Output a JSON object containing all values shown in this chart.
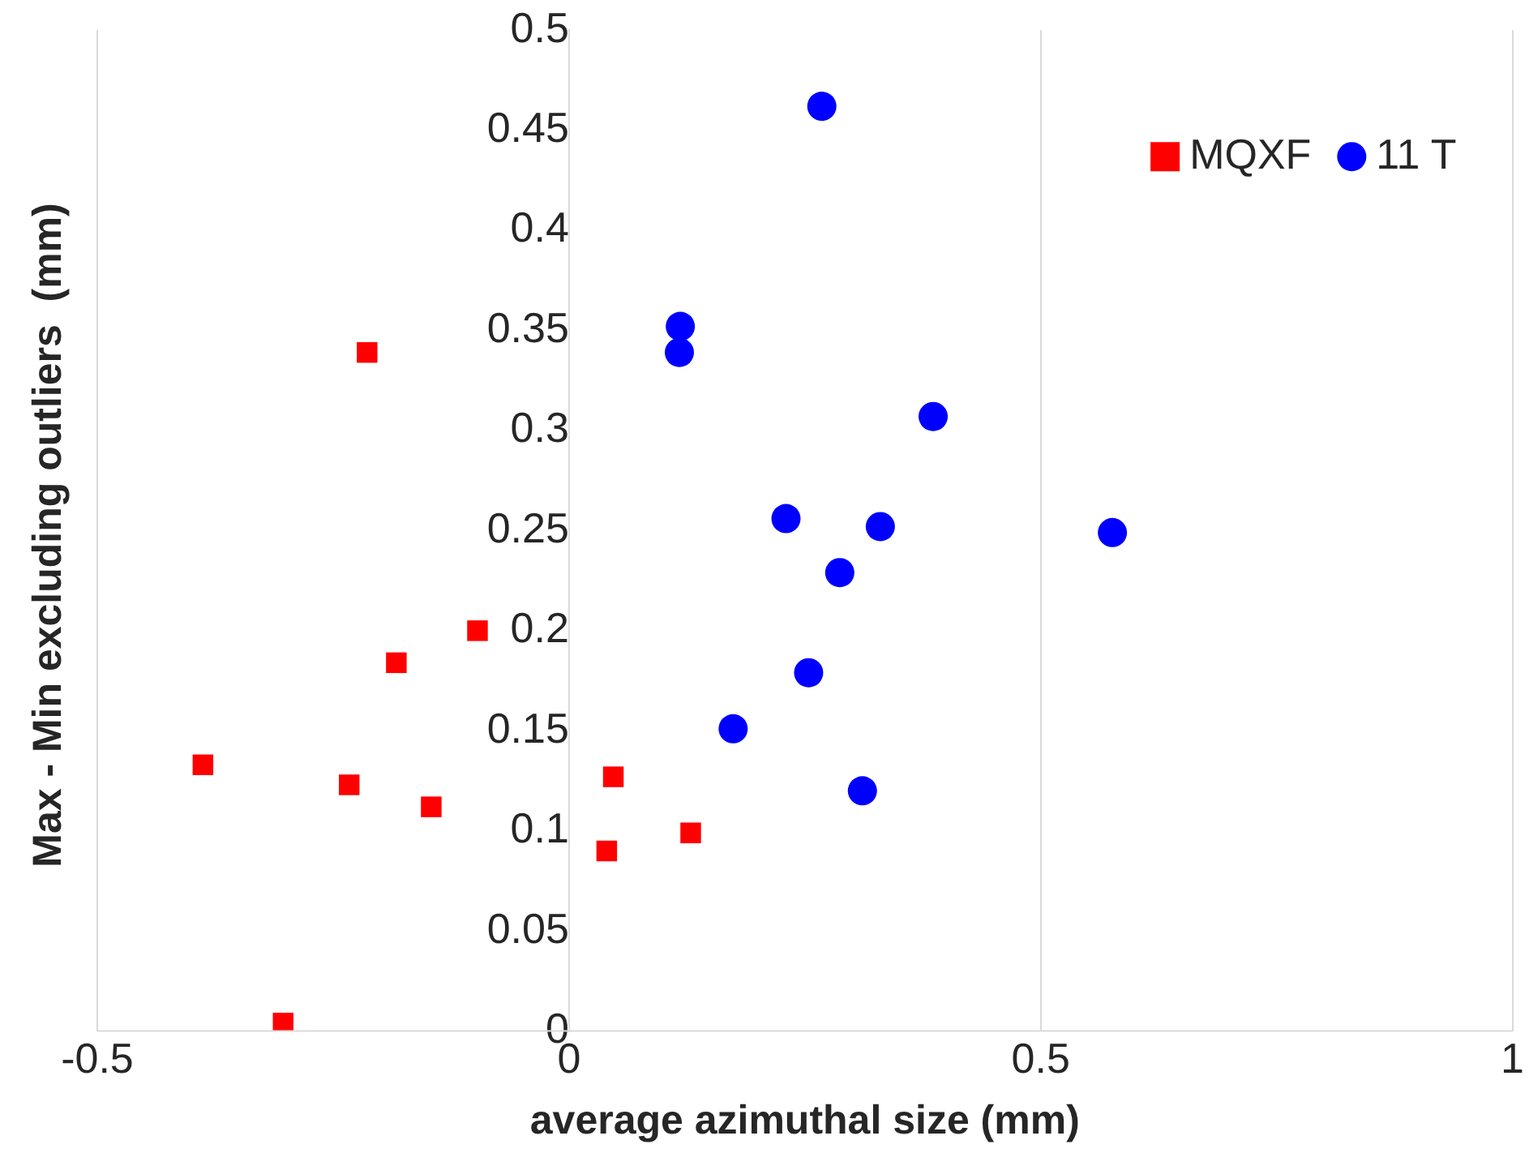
{
  "chart_data": {
    "type": "scatter",
    "xlabel": "average azimuthal size (mm)",
    "ylabel": "Max - Min excluding outliers  (mm)",
    "xlim": [
      -0.5,
      1
    ],
    "xticks": [
      -0.5,
      0,
      0.5,
      1
    ],
    "ylim": [
      0,
      0.5
    ],
    "yticks": [
      0,
      0.05,
      0.1,
      0.15,
      0.2,
      0.25,
      0.3,
      0.35,
      0.4,
      0.45,
      0.5
    ],
    "grid": "x",
    "legend": "top right",
    "series": [
      {
        "name": "MQXF",
        "color": "#ff0000",
        "marker": "square",
        "x": [
          -0.214,
          -0.097,
          -0.183,
          -0.388,
          -0.233,
          -0.146,
          0.047,
          0.04,
          0.129,
          -0.303
        ],
        "values": [
          0.339,
          0.2,
          0.184,
          0.133,
          0.123,
          0.112,
          0.127,
          0.09,
          0.099,
          0.004
        ]
      },
      {
        "name": "11 T",
        "color": "#0000ff",
        "marker": "circle",
        "x": [
          0.268,
          0.118,
          0.117,
          0.386,
          0.23,
          0.33,
          0.576,
          0.287,
          0.254,
          0.174,
          0.311
        ],
        "values": [
          0.462,
          0.352,
          0.339,
          0.307,
          0.256,
          0.252,
          0.249,
          0.229,
          0.179,
          0.151,
          0.12
        ]
      }
    ]
  }
}
